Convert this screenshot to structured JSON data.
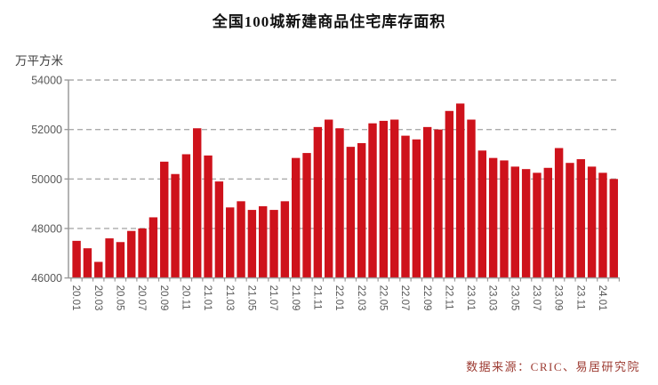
{
  "title": "全国100城新建商品住宅库存面积",
  "unit_label": "万平方米",
  "source": "数据来源：CRIC、易居研究院",
  "chart_data": {
    "type": "bar",
    "title": "全国100城新建商品住宅库存面积",
    "ylabel": "万平方米",
    "ylim": [
      46000,
      54000
    ],
    "yticks": [
      46000,
      48000,
      50000,
      52000,
      54000
    ],
    "grid": "dashed horizontal gridlines at each ytick",
    "legend_position": "none",
    "bar_color": "#ce121b",
    "axis_color": "#9b9b9b",
    "gridline_color": "#ababab",
    "tick_label_color": "#595959",
    "x_labels_shown_every": 2,
    "x_label_rotation_deg": 90,
    "categories": [
      "20.01",
      "20.02",
      "20.03",
      "20.04",
      "20.05",
      "20.06",
      "20.07",
      "20.08",
      "20.09",
      "20.10",
      "20.11",
      "20.12",
      "21.01",
      "21.02",
      "21.03",
      "21.04",
      "21.05",
      "21.06",
      "21.07",
      "21.08",
      "21.09",
      "21.10",
      "21.11",
      "21.12",
      "22.01",
      "22.02",
      "22.03",
      "22.04",
      "22.05",
      "22.06",
      "22.07",
      "22.08",
      "22.09",
      "22.10",
      "22.11",
      "22.12",
      "23.01",
      "23.02",
      "23.03",
      "23.04",
      "23.05",
      "23.06",
      "23.07",
      "23.08",
      "23.09",
      "23.10",
      "23.11",
      "23.12",
      "24.01",
      "24.02"
    ],
    "values": [
      47500,
      47200,
      46650,
      47600,
      47450,
      47900,
      48000,
      48450,
      50700,
      50200,
      51000,
      52050,
      50950,
      49900,
      48850,
      49100,
      48750,
      48900,
      48750,
      49100,
      50850,
      51050,
      52100,
      52400,
      52050,
      51300,
      51450,
      52250,
      52350,
      52400,
      51750,
      51600,
      52100,
      52000,
      52750,
      53050,
      52400,
      51150,
      50850,
      50750,
      50500,
      50400,
      50250,
      50450,
      51250,
      50650,
      50800,
      50500,
      50250,
      50000
    ]
  }
}
